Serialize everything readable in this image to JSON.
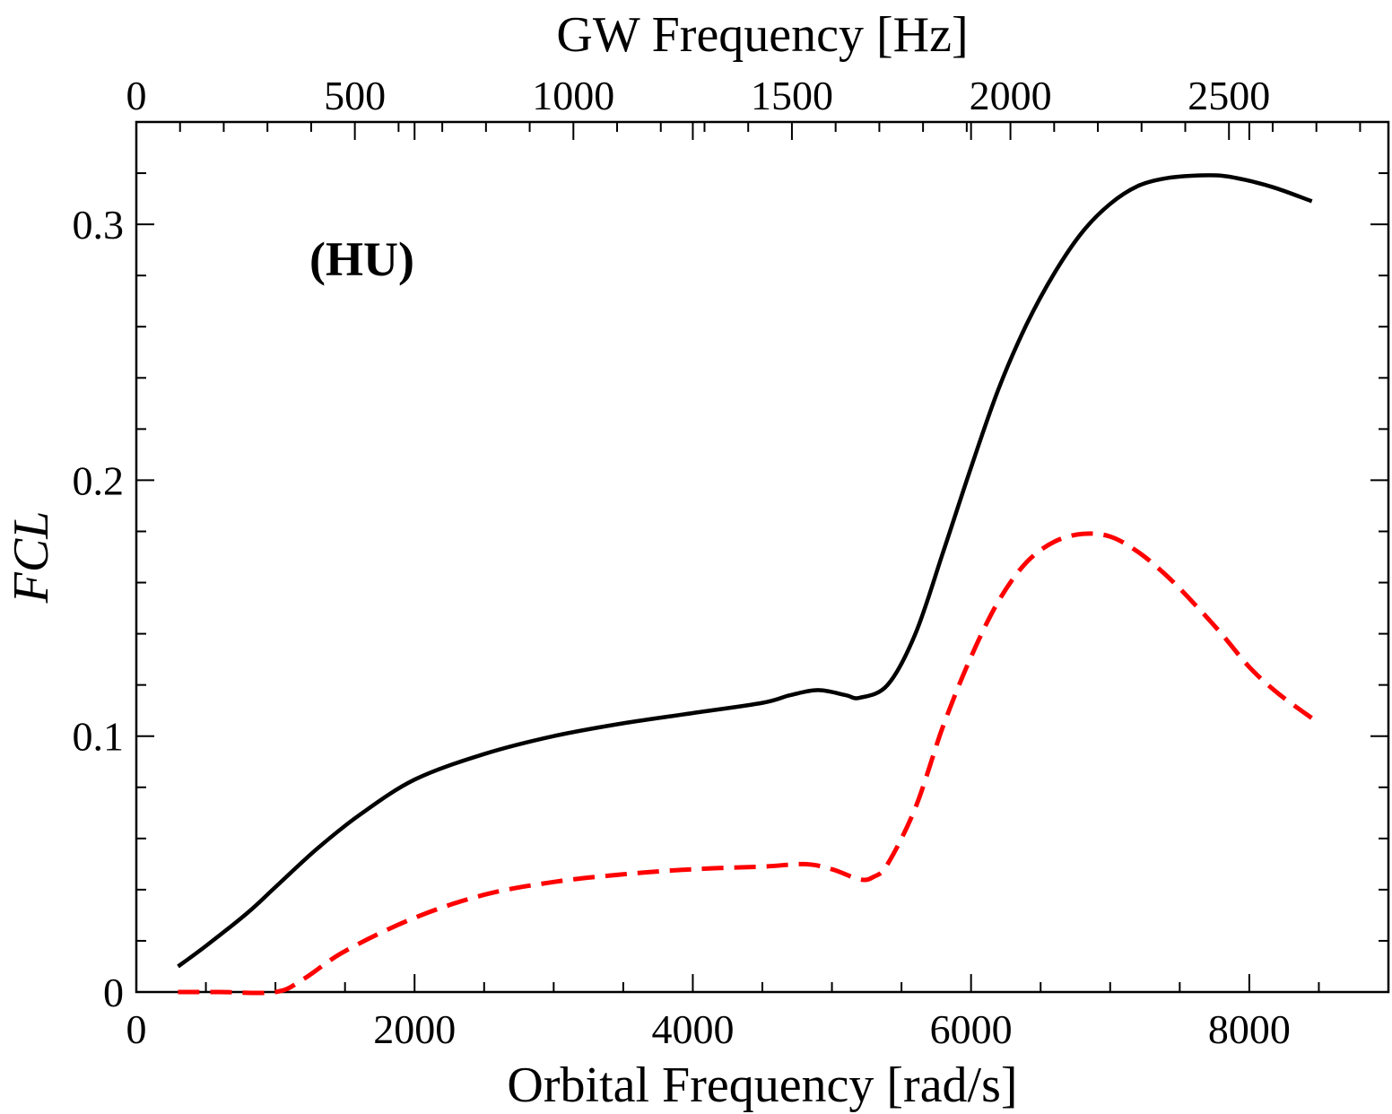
{
  "chart_data": {
    "type": "line",
    "title": "",
    "xlabel": "Orbital Frequency [rad/s]",
    "ylabel": "FCL",
    "x2label": "GW Frequency [Hz]",
    "annotation": "(HU)",
    "xlim": [
      0,
      9000
    ],
    "ylim": [
      0,
      0.34
    ],
    "x2lim": [
      0,
      2864.8
    ],
    "xticks": [
      0,
      2000,
      4000,
      6000,
      8000
    ],
    "xtick_labels": [
      "0",
      "2000",
      "4000",
      "6000",
      "8000"
    ],
    "yticks": [
      0,
      0.1,
      0.2,
      0.3
    ],
    "ytick_labels": [
      "0",
      "0.1",
      "0.2",
      "0.3"
    ],
    "x2ticks": [
      0,
      500,
      1000,
      1500,
      2000,
      2500
    ],
    "x2tick_labels": [
      "0",
      "500",
      "1000",
      "1500",
      "2000",
      "2500"
    ],
    "grid": false,
    "series": [
      {
        "name": "solid",
        "color": "#000000",
        "style": "solid",
        "x": [
          300,
          500,
          800,
          1000,
          1300,
          1600,
          2000,
          2500,
          3000,
          3500,
          4000,
          4500,
          4700,
          4900,
          5100,
          5200,
          5400,
          5600,
          5800,
          6000,
          6200,
          6400,
          6600,
          6800,
          7000,
          7200,
          7400,
          7600,
          7800,
          8000,
          8200,
          8450
        ],
        "y": [
          0.01,
          0.018,
          0.031,
          0.041,
          0.056,
          0.069,
          0.083,
          0.093,
          0.1,
          0.105,
          0.109,
          0.113,
          0.116,
          0.118,
          0.116,
          0.115,
          0.12,
          0.14,
          0.172,
          0.205,
          0.236,
          0.261,
          0.281,
          0.297,
          0.308,
          0.315,
          0.318,
          0.319,
          0.319,
          0.317,
          0.314,
          0.309
        ]
      },
      {
        "name": "dashed",
        "color": "#ff0000",
        "style": "dashed",
        "x": [
          300,
          600,
          1000,
          1200,
          1500,
          2000,
          2500,
          3000,
          3500,
          4000,
          4500,
          4800,
          5000,
          5200,
          5300,
          5400,
          5600,
          5800,
          6000,
          6200,
          6400,
          6600,
          6800,
          7000,
          7200,
          7400,
          7600,
          7800,
          8000,
          8200,
          8450
        ],
        "y": [
          0,
          0,
          0,
          0.005,
          0.016,
          0.029,
          0.038,
          0.043,
          0.046,
          0.048,
          0.049,
          0.05,
          0.048,
          0.044,
          0.045,
          0.05,
          0.072,
          0.104,
          0.131,
          0.153,
          0.168,
          0.176,
          0.179,
          0.178,
          0.172,
          0.163,
          0.152,
          0.14,
          0.127,
          0.117,
          0.107
        ]
      }
    ]
  }
}
